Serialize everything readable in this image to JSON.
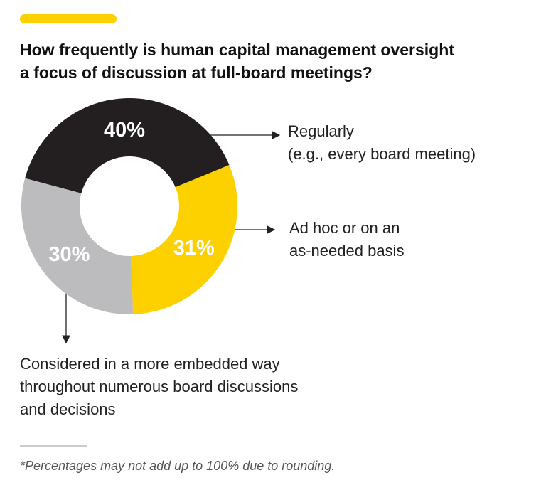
{
  "chart_data": {
    "type": "donut",
    "title": [
      "How frequently is human capital management oversight",
      "a focus of discussion at full-board meetings?"
    ],
    "categories": [
      [
        "Regularly",
        "(e.g., every board meeting)"
      ],
      [
        "Ad hoc or on an",
        "as-needed basis"
      ],
      [
        "Considered in a more embedded way",
        "throughout numerous board discussions",
        "and decisions"
      ]
    ],
    "values": [
      40,
      31,
      30
    ],
    "value_labels": [
      "40%",
      "31%",
      "30%"
    ],
    "colors": [
      "#231f20",
      "#fdd000",
      "#bcbcbe"
    ],
    "footnote": "*Percentages may not add up to 100% due to rounding."
  }
}
